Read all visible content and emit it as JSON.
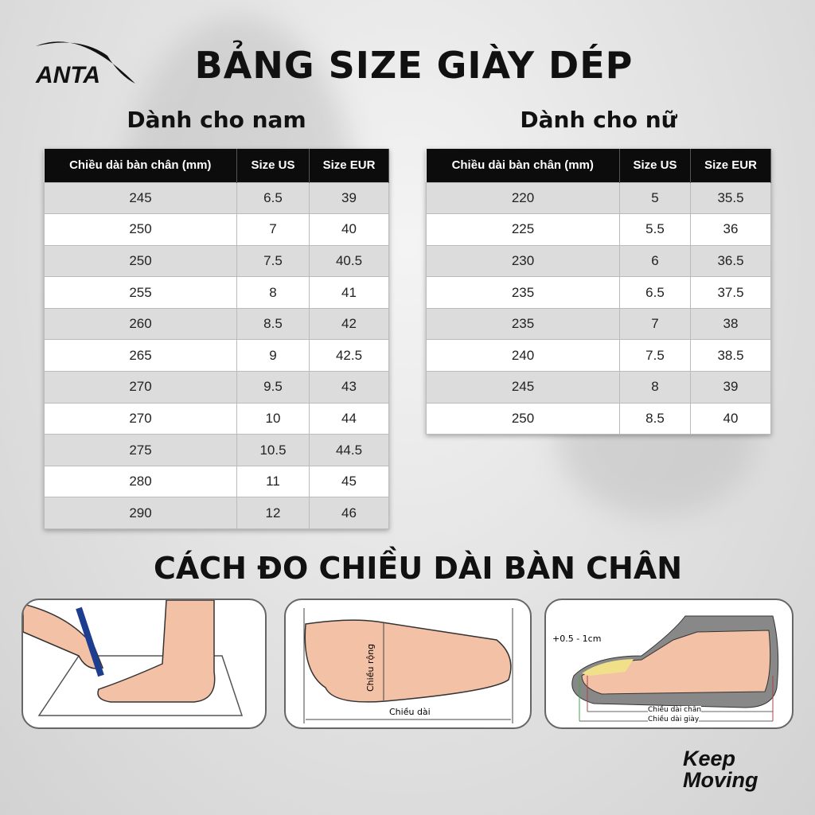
{
  "brand": {
    "logo_text": "ANTA",
    "slogan_line1": "Keep",
    "slogan_line2": "Moving"
  },
  "title": "BẢNG SIZE GIÀY DÉP",
  "men": {
    "heading": "Dành cho nam",
    "columns": [
      "Chiều dài bàn chân (mm)",
      "Size US",
      "Size EUR"
    ],
    "rows": [
      [
        "245",
        "6.5",
        "39"
      ],
      [
        "250",
        "7",
        "40"
      ],
      [
        "250",
        "7.5",
        "40.5"
      ],
      [
        "255",
        "8",
        "41"
      ],
      [
        "260",
        "8.5",
        "42"
      ],
      [
        "265",
        "9",
        "42.5"
      ],
      [
        "270",
        "9.5",
        "43"
      ],
      [
        "270",
        "10",
        "44"
      ],
      [
        "275",
        "10.5",
        "44.5"
      ],
      [
        "280",
        "11",
        "45"
      ],
      [
        "290",
        "12",
        "46"
      ]
    ]
  },
  "women": {
    "heading": "Dành cho nữ",
    "columns": [
      "Chiều dài bàn chân (mm)",
      "Size US",
      "Size EUR"
    ],
    "rows": [
      [
        "220",
        "5",
        "35.5"
      ],
      [
        "225",
        "5.5",
        "36"
      ],
      [
        "230",
        "6",
        "36.5"
      ],
      [
        "235",
        "6.5",
        "37.5"
      ],
      [
        "235",
        "7",
        "38"
      ],
      [
        "240",
        "7.5",
        "38.5"
      ],
      [
        "245",
        "8",
        "39"
      ],
      [
        "250",
        "8.5",
        "40"
      ]
    ]
  },
  "howto": {
    "heading": "CÁCH ĐO CHIỀU DÀI BÀN CHÂN",
    "panel2": {
      "width_label": "Chiều rộng",
      "length_label": "Chiều dài"
    },
    "panel3": {
      "allowance_label": "+0.5 - 1cm",
      "foot_length_label": "Chiều dài chân",
      "shoe_length_label": "Chiều dài giày"
    }
  }
}
